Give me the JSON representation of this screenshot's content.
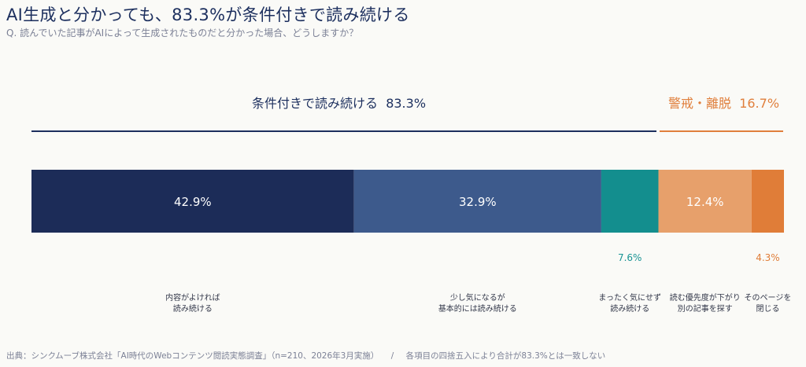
{
  "title": "AI生成と分かっても、83.3%が条件付きで読み続ける",
  "subtitle": "Q. 読んでいた記事がAIによって生成されたものだと分かった場合、どうしますか？",
  "groups": [
    {
      "label": "条件付きで読み続ける",
      "value": "83.3%",
      "color": "#1c2f5e"
    },
    {
      "label": "警戒・離脱",
      "value": "16.7%",
      "color": "#e07f3c"
    }
  ],
  "chart_data": {
    "type": "bar",
    "orientation": "horizontal-stacked-100",
    "categories": [
      "内容がよければ\n読み続ける",
      "少し気になるが\n基本的には読み続ける",
      "まったく気にせず\n読み続ける",
      "読む優先度が下がり\n別の記事を探す",
      "そのページを\n閉じる"
    ],
    "values": [
      42.9,
      32.9,
      7.6,
      12.4,
      4.3
    ],
    "value_labels": [
      "42.9%",
      "32.9%",
      "7.6%",
      "12.4%",
      "4.3%"
    ],
    "colors": [
      "#1c2c58",
      "#3d5a8c",
      "#138e8e",
      "#e7a06b",
      "#e07d38"
    ],
    "label_colors": [
      "#ffffff",
      "#ffffff",
      "#199494",
      "#ffffff",
      "#e07d38"
    ],
    "label_inside": [
      true,
      true,
      false,
      true,
      false
    ],
    "xlim": [
      0,
      100
    ]
  },
  "footer": {
    "source": "出典：シンクムーブ株式会社「AI時代のWebコンテンツ閲読実態調査」（n=210、2026年3月実施）",
    "separator": "/",
    "note": "各項目の四捨五入により合計が83.3%とは一致しない"
  }
}
